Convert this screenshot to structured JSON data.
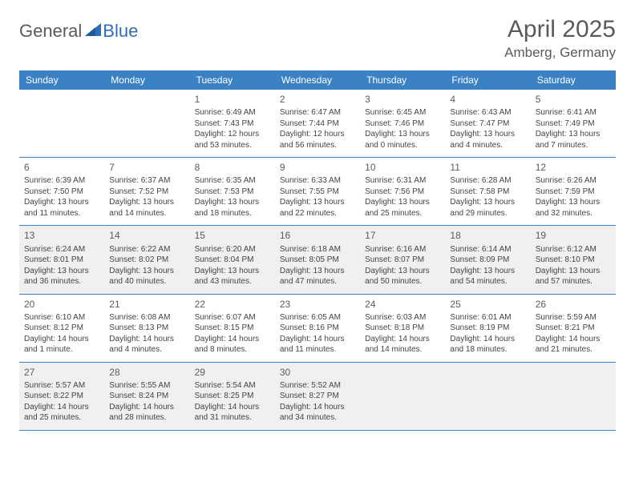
{
  "logo": {
    "general": "General",
    "blue": "Blue"
  },
  "title": "April 2025",
  "location": "Amberg, Germany",
  "colors": {
    "header_bg": "#3b82c4",
    "header_text": "#ffffff",
    "shaded_bg": "#f0f0f0",
    "border": "#3b82c4",
    "text_gray": "#5a5a5a",
    "logo_blue": "#2e6fb5"
  },
  "day_names": [
    "Sunday",
    "Monday",
    "Tuesday",
    "Wednesday",
    "Thursday",
    "Friday",
    "Saturday"
  ],
  "weeks": [
    {
      "shaded": false,
      "cells": [
        {
          "day": "",
          "sunrise": "",
          "sunset": "",
          "daylight1": "",
          "daylight2": ""
        },
        {
          "day": "",
          "sunrise": "",
          "sunset": "",
          "daylight1": "",
          "daylight2": ""
        },
        {
          "day": "1",
          "sunrise": "Sunrise: 6:49 AM",
          "sunset": "Sunset: 7:43 PM",
          "daylight1": "Daylight: 12 hours",
          "daylight2": "and 53 minutes."
        },
        {
          "day": "2",
          "sunrise": "Sunrise: 6:47 AM",
          "sunset": "Sunset: 7:44 PM",
          "daylight1": "Daylight: 12 hours",
          "daylight2": "and 56 minutes."
        },
        {
          "day": "3",
          "sunrise": "Sunrise: 6:45 AM",
          "sunset": "Sunset: 7:46 PM",
          "daylight1": "Daylight: 13 hours",
          "daylight2": "and 0 minutes."
        },
        {
          "day": "4",
          "sunrise": "Sunrise: 6:43 AM",
          "sunset": "Sunset: 7:47 PM",
          "daylight1": "Daylight: 13 hours",
          "daylight2": "and 4 minutes."
        },
        {
          "day": "5",
          "sunrise": "Sunrise: 6:41 AM",
          "sunset": "Sunset: 7:49 PM",
          "daylight1": "Daylight: 13 hours",
          "daylight2": "and 7 minutes."
        }
      ]
    },
    {
      "shaded": false,
      "cells": [
        {
          "day": "6",
          "sunrise": "Sunrise: 6:39 AM",
          "sunset": "Sunset: 7:50 PM",
          "daylight1": "Daylight: 13 hours",
          "daylight2": "and 11 minutes."
        },
        {
          "day": "7",
          "sunrise": "Sunrise: 6:37 AM",
          "sunset": "Sunset: 7:52 PM",
          "daylight1": "Daylight: 13 hours",
          "daylight2": "and 14 minutes."
        },
        {
          "day": "8",
          "sunrise": "Sunrise: 6:35 AM",
          "sunset": "Sunset: 7:53 PM",
          "daylight1": "Daylight: 13 hours",
          "daylight2": "and 18 minutes."
        },
        {
          "day": "9",
          "sunrise": "Sunrise: 6:33 AM",
          "sunset": "Sunset: 7:55 PM",
          "daylight1": "Daylight: 13 hours",
          "daylight2": "and 22 minutes."
        },
        {
          "day": "10",
          "sunrise": "Sunrise: 6:31 AM",
          "sunset": "Sunset: 7:56 PM",
          "daylight1": "Daylight: 13 hours",
          "daylight2": "and 25 minutes."
        },
        {
          "day": "11",
          "sunrise": "Sunrise: 6:28 AM",
          "sunset": "Sunset: 7:58 PM",
          "daylight1": "Daylight: 13 hours",
          "daylight2": "and 29 minutes."
        },
        {
          "day": "12",
          "sunrise": "Sunrise: 6:26 AM",
          "sunset": "Sunset: 7:59 PM",
          "daylight1": "Daylight: 13 hours",
          "daylight2": "and 32 minutes."
        }
      ]
    },
    {
      "shaded": true,
      "cells": [
        {
          "day": "13",
          "sunrise": "Sunrise: 6:24 AM",
          "sunset": "Sunset: 8:01 PM",
          "daylight1": "Daylight: 13 hours",
          "daylight2": "and 36 minutes."
        },
        {
          "day": "14",
          "sunrise": "Sunrise: 6:22 AM",
          "sunset": "Sunset: 8:02 PM",
          "daylight1": "Daylight: 13 hours",
          "daylight2": "and 40 minutes."
        },
        {
          "day": "15",
          "sunrise": "Sunrise: 6:20 AM",
          "sunset": "Sunset: 8:04 PM",
          "daylight1": "Daylight: 13 hours",
          "daylight2": "and 43 minutes."
        },
        {
          "day": "16",
          "sunrise": "Sunrise: 6:18 AM",
          "sunset": "Sunset: 8:05 PM",
          "daylight1": "Daylight: 13 hours",
          "daylight2": "and 47 minutes."
        },
        {
          "day": "17",
          "sunrise": "Sunrise: 6:16 AM",
          "sunset": "Sunset: 8:07 PM",
          "daylight1": "Daylight: 13 hours",
          "daylight2": "and 50 minutes."
        },
        {
          "day": "18",
          "sunrise": "Sunrise: 6:14 AM",
          "sunset": "Sunset: 8:09 PM",
          "daylight1": "Daylight: 13 hours",
          "daylight2": "and 54 minutes."
        },
        {
          "day": "19",
          "sunrise": "Sunrise: 6:12 AM",
          "sunset": "Sunset: 8:10 PM",
          "daylight1": "Daylight: 13 hours",
          "daylight2": "and 57 minutes."
        }
      ]
    },
    {
      "shaded": false,
      "cells": [
        {
          "day": "20",
          "sunrise": "Sunrise: 6:10 AM",
          "sunset": "Sunset: 8:12 PM",
          "daylight1": "Daylight: 14 hours",
          "daylight2": "and 1 minute."
        },
        {
          "day": "21",
          "sunrise": "Sunrise: 6:08 AM",
          "sunset": "Sunset: 8:13 PM",
          "daylight1": "Daylight: 14 hours",
          "daylight2": "and 4 minutes."
        },
        {
          "day": "22",
          "sunrise": "Sunrise: 6:07 AM",
          "sunset": "Sunset: 8:15 PM",
          "daylight1": "Daylight: 14 hours",
          "daylight2": "and 8 minutes."
        },
        {
          "day": "23",
          "sunrise": "Sunrise: 6:05 AM",
          "sunset": "Sunset: 8:16 PM",
          "daylight1": "Daylight: 14 hours",
          "daylight2": "and 11 minutes."
        },
        {
          "day": "24",
          "sunrise": "Sunrise: 6:03 AM",
          "sunset": "Sunset: 8:18 PM",
          "daylight1": "Daylight: 14 hours",
          "daylight2": "and 14 minutes."
        },
        {
          "day": "25",
          "sunrise": "Sunrise: 6:01 AM",
          "sunset": "Sunset: 8:19 PM",
          "daylight1": "Daylight: 14 hours",
          "daylight2": "and 18 minutes."
        },
        {
          "day": "26",
          "sunrise": "Sunrise: 5:59 AM",
          "sunset": "Sunset: 8:21 PM",
          "daylight1": "Daylight: 14 hours",
          "daylight2": "and 21 minutes."
        }
      ]
    },
    {
      "shaded": true,
      "cells": [
        {
          "day": "27",
          "sunrise": "Sunrise: 5:57 AM",
          "sunset": "Sunset: 8:22 PM",
          "daylight1": "Daylight: 14 hours",
          "daylight2": "and 25 minutes."
        },
        {
          "day": "28",
          "sunrise": "Sunrise: 5:55 AM",
          "sunset": "Sunset: 8:24 PM",
          "daylight1": "Daylight: 14 hours",
          "daylight2": "and 28 minutes."
        },
        {
          "day": "29",
          "sunrise": "Sunrise: 5:54 AM",
          "sunset": "Sunset: 8:25 PM",
          "daylight1": "Daylight: 14 hours",
          "daylight2": "and 31 minutes."
        },
        {
          "day": "30",
          "sunrise": "Sunrise: 5:52 AM",
          "sunset": "Sunset: 8:27 PM",
          "daylight1": "Daylight: 14 hours",
          "daylight2": "and 34 minutes."
        },
        {
          "day": "",
          "sunrise": "",
          "sunset": "",
          "daylight1": "",
          "daylight2": ""
        },
        {
          "day": "",
          "sunrise": "",
          "sunset": "",
          "daylight1": "",
          "daylight2": ""
        },
        {
          "day": "",
          "sunrise": "",
          "sunset": "",
          "daylight1": "",
          "daylight2": ""
        }
      ]
    }
  ]
}
